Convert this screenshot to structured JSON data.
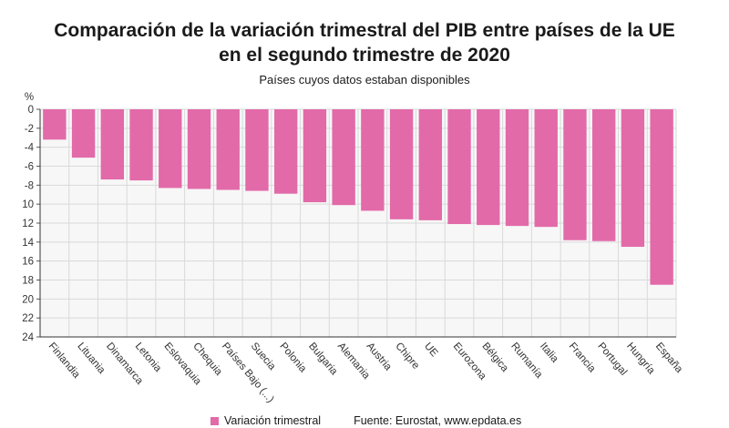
{
  "chart_data": {
    "type": "bar",
    "title": "Comparación de la variación trimestral del PIB entre países de la UE en el segundo trimestre de 2020",
    "title_lines": [
      "Comparación de la variación trimestral del PIB entre países de la UE",
      "en el segundo trimestre de 2020"
    ],
    "subtitle": "Países cuyos datos estaban disponibles",
    "y_unit_label": "%",
    "ylim": [
      -24,
      0
    ],
    "y_ticks": [
      0,
      -2,
      -4,
      -6,
      -8,
      -10,
      -12,
      -14,
      -16,
      -18,
      -20,
      -22,
      -24
    ],
    "y_tick_labels": [
      "0",
      "-2",
      "-4",
      "-6",
      "-8",
      "10",
      "12",
      "14",
      "16",
      "18",
      "20",
      "22",
      "24"
    ],
    "grid": true,
    "legend_position": "bottom",
    "categories": [
      "Finlandia",
      "Lituania",
      "Dinamarca",
      "Letonia",
      "Eslovaquia",
      "Chequia",
      "Países Bajo (...)",
      "Suecia",
      "Polonia",
      "Bulgaria",
      "Alemania",
      "Austria",
      "Chipre",
      "UE",
      "Eurozona",
      "Bélgica",
      "Rumanía",
      "Italia",
      "Francia",
      "Portugal",
      "Hungría",
      "España"
    ],
    "series": [
      {
        "name": "Variación trimestral",
        "color": "#e26aa9",
        "values": [
          -3.2,
          -5.1,
          -7.4,
          -7.5,
          -8.3,
          -8.4,
          -8.5,
          -8.6,
          -8.9,
          -9.8,
          -10.1,
          -10.7,
          -11.6,
          -11.7,
          -12.1,
          -12.2,
          -12.3,
          -12.4,
          -13.8,
          -13.9,
          -14.5,
          -18.5
        ]
      }
    ]
  },
  "legend": {
    "series_label": "Variación trimestral",
    "source": "Fuente: Eurostat, www.epdata.es"
  }
}
